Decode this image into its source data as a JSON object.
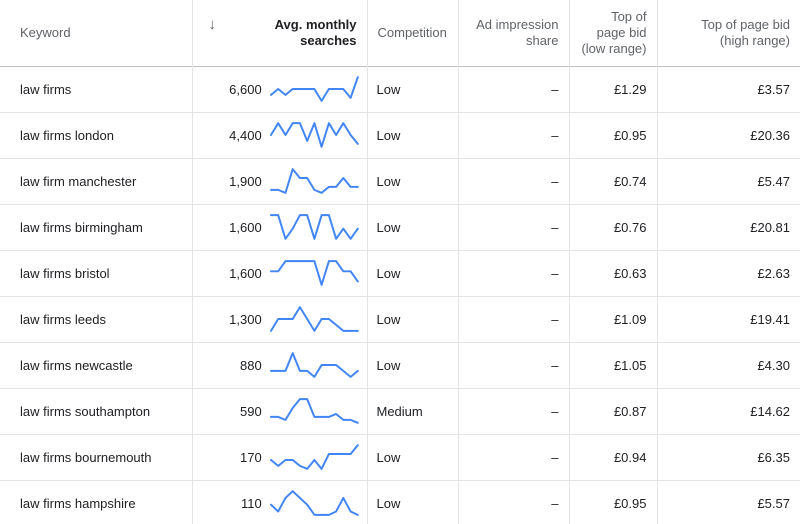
{
  "headers": {
    "keyword": "Keyword",
    "sort_icon": "arrow-down-icon",
    "searches_line1": "Avg. monthly",
    "searches_line2": "searches",
    "competition": "Competition",
    "impression_line1": "Ad impression",
    "impression_line2": "share",
    "low_bid_line1": "Top of",
    "low_bid_line2": "page bid",
    "low_bid_line3": "(low range)",
    "high_bid_line1": "Top of page bid",
    "high_bid_line2": "(high range)"
  },
  "trend_color": "#4285f4",
  "rows": [
    {
      "keyword": "law firms",
      "searches": "6,600",
      "competition": "Low",
      "impression": "–",
      "low_bid": "£1.29",
      "high_bid": "£3.57",
      "trend": [
        3,
        5,
        3,
        5,
        5,
        5,
        5,
        1,
        5,
        5,
        5,
        2,
        9
      ]
    },
    {
      "keyword": "law firms london",
      "searches": "4,400",
      "competition": "Low",
      "impression": "–",
      "low_bid": "£0.95",
      "high_bid": "£20.36",
      "trend": [
        5,
        9,
        5,
        9,
        9,
        3,
        9,
        1,
        9,
        5,
        9,
        5,
        2
      ]
    },
    {
      "keyword": "law firm manchester",
      "searches": "1,900",
      "competition": "Low",
      "impression": "–",
      "low_bid": "£0.74",
      "high_bid": "£5.47",
      "trend": [
        2,
        2,
        1,
        9,
        6,
        6,
        2,
        1,
        3,
        3,
        6,
        3,
        3
      ]
    },
    {
      "keyword": "law firms birmingham",
      "searches": "1,600",
      "competition": "Low",
      "impression": "–",
      "low_bid": "£0.76",
      "high_bid": "£20.81",
      "trend": [
        8,
        8,
        1,
        4,
        8,
        8,
        1,
        8,
        8,
        1,
        4,
        1,
        4
      ]
    },
    {
      "keyword": "law firms bristol",
      "searches": "1,600",
      "competition": "Low",
      "impression": "–",
      "low_bid": "£0.63",
      "high_bid": "£2.63",
      "trend": [
        5,
        5,
        8,
        8,
        8,
        8,
        8,
        1,
        8,
        8,
        5,
        5,
        2
      ]
    },
    {
      "keyword": "law firms leeds",
      "searches": "1,300",
      "competition": "Low",
      "impression": "–",
      "low_bid": "£1.09",
      "high_bid": "£19.41",
      "trend": [
        1,
        5,
        5,
        5,
        9,
        5,
        1,
        5,
        5,
        3,
        1,
        1,
        1
      ]
    },
    {
      "keyword": "law firms newcastle",
      "searches": "880",
      "competition": "Low",
      "impression": "–",
      "low_bid": "£1.05",
      "high_bid": "£4.30",
      "trend": [
        3,
        3,
        3,
        9,
        3,
        3,
        1,
        5,
        5,
        5,
        3,
        1,
        3
      ]
    },
    {
      "keyword": "law firms southampton",
      "searches": "590",
      "competition": "Medium",
      "impression": "–",
      "low_bid": "£0.87",
      "high_bid": "£14.62",
      "trend": [
        3,
        3,
        2,
        6,
        9,
        9,
        3,
        3,
        3,
        4,
        2,
        2,
        1
      ]
    },
    {
      "keyword": "law firms bournemouth",
      "searches": "170",
      "competition": "Low",
      "impression": "–",
      "low_bid": "£0.94",
      "high_bid": "£6.35",
      "trend": [
        4,
        2,
        4,
        4,
        2,
        1,
        4,
        1,
        6,
        6,
        6,
        6,
        9
      ]
    },
    {
      "keyword": "law firms hampshire",
      "searches": "110",
      "competition": "Low",
      "impression": "–",
      "low_bid": "£0.95",
      "high_bid": "£5.57",
      "trend": [
        4,
        2,
        6,
        8,
        6,
        4,
        1,
        1,
        1,
        2,
        6,
        2,
        1
      ]
    }
  ]
}
